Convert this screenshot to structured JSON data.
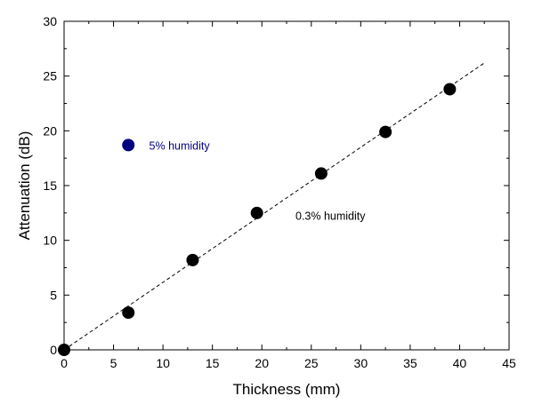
{
  "chart_data": {
    "type": "scatter",
    "title": "",
    "xlabel": "Thickness (mm)",
    "ylabel": "Attenuation (dB)",
    "xlim": [
      0,
      45
    ],
    "ylim": [
      0,
      30
    ],
    "x_ticks": [
      0,
      5,
      10,
      15,
      20,
      25,
      30,
      35,
      40,
      45
    ],
    "y_ticks": [
      0,
      5,
      10,
      15,
      20,
      25,
      30
    ],
    "grid": false,
    "legend": "none",
    "series": [
      {
        "color": "#000000",
        "points": [
          {
            "x": 0,
            "y": 0
          },
          {
            "x": 6.5,
            "y": 3.4
          },
          {
            "x": 13,
            "y": 8.2
          },
          {
            "x": 19.5,
            "y": 12.5
          },
          {
            "x": 26,
            "y": 16.1
          },
          {
            "x": 32.5,
            "y": 19.9
          },
          {
            "x": 39,
            "y": 23.8
          }
        ]
      },
      {
        "color": "#000080",
        "points": [
          {
            "x": 6.5,
            "y": 18.7
          }
        ]
      }
    ],
    "fit_line": {
      "style": "dashed",
      "color": "#000000",
      "from": {
        "x": 0,
        "y": 0
      },
      "to": {
        "x": 42.5,
        "y": 26.2
      }
    },
    "annotations": [
      {
        "text": "5% humidity",
        "x": 8.6,
        "y": 18.7,
        "color": "#000080"
      },
      {
        "text": "0.3% humidity",
        "x": 23.4,
        "y": 12.3,
        "color": "#000000"
      }
    ]
  }
}
